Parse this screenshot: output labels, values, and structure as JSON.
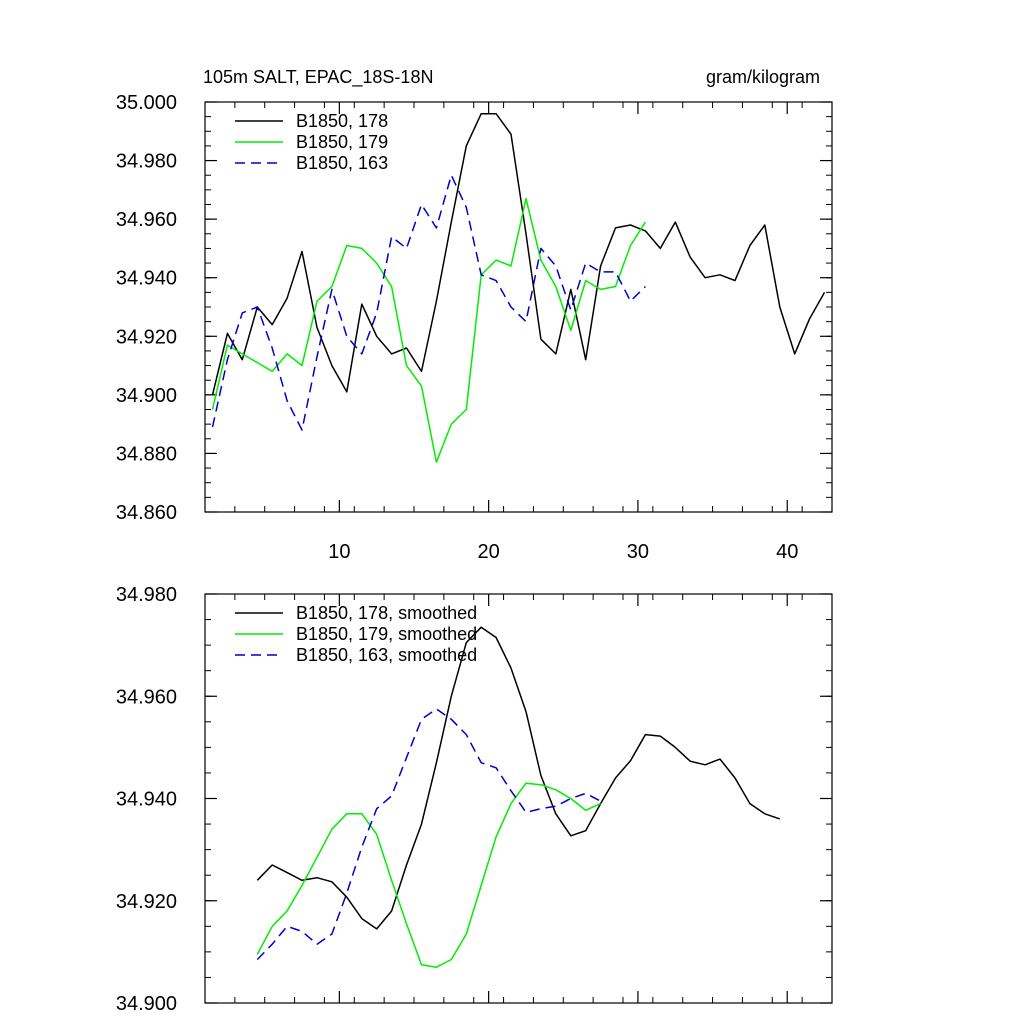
{
  "chart_data": [
    {
      "type": "line",
      "title_left": "105m SALT, EPAC_18S-18N",
      "title_right": "gram/kilogram",
      "xlim": [
        1,
        43
      ],
      "ylim": [
        34.86,
        35.0
      ],
      "xticks": [
        10,
        20,
        30,
        40
      ],
      "xtick_labels": [
        "10",
        "20",
        "30",
        "40"
      ],
      "yticks": [
        34.86,
        34.88,
        34.9,
        34.92,
        34.94,
        34.96,
        34.98,
        35.0
      ],
      "ytick_labels": [
        "34.860",
        "34.880",
        "34.900",
        "34.920",
        "34.940",
        "34.960",
        "34.980",
        "35.000"
      ],
      "legend_position": "top-left",
      "series": [
        {
          "name": "B1850, 178",
          "color": "#000000",
          "dash": "solid",
          "x": [
            1.5,
            2.5,
            3.5,
            4.5,
            5.5,
            6.5,
            7.5,
            8.5,
            9.5,
            10.5,
            11.5,
            12.5,
            13.5,
            14.5,
            15.5,
            16.5,
            17.5,
            18.5,
            19.5,
            20.5,
            21.5,
            22.5,
            23.5,
            24.5,
            25.5,
            26.5,
            27.5,
            28.5,
            29.5,
            30.5,
            31.5,
            32.5,
            33.5,
            34.5,
            35.5,
            36.5,
            37.5,
            38.5,
            39.5,
            40.5,
            41.5,
            42.5
          ],
          "y": [
            34.9,
            34.921,
            34.912,
            34.93,
            34.924,
            34.933,
            34.949,
            34.923,
            34.91,
            34.901,
            34.931,
            34.92,
            34.914,
            34.916,
            34.908,
            34.932,
            34.959,
            34.985,
            34.996,
            34.996,
            34.989,
            34.955,
            34.919,
            34.914,
            34.936,
            34.912,
            34.944,
            34.957,
            34.958,
            34.956,
            34.95,
            34.959,
            34.947,
            34.94,
            34.941,
            34.939,
            34.951,
            34.958,
            34.93,
            34.914,
            34.926,
            34.935
          ]
        },
        {
          "name": "B1850, 179",
          "color": "#00ee00",
          "dash": "solid",
          "x": [
            1.5,
            2.5,
            3.5,
            4.5,
            5.5,
            6.5,
            7.5,
            8.5,
            9.5,
            10.5,
            11.5,
            12.5,
            13.5,
            14.5,
            15.5,
            16.5,
            17.5,
            18.5,
            19.5,
            20.5,
            21.5,
            22.5,
            23.5,
            24.5,
            25.5,
            26.5,
            27.5,
            28.5,
            29.5,
            30.5
          ],
          "y": [
            34.895,
            34.917,
            34.914,
            34.911,
            34.908,
            34.914,
            34.91,
            34.932,
            34.937,
            34.951,
            34.95,
            34.945,
            34.937,
            34.91,
            34.903,
            34.877,
            34.89,
            34.895,
            34.941,
            34.946,
            34.944,
            34.967,
            34.946,
            34.937,
            34.922,
            34.939,
            34.936,
            34.937,
            34.951,
            34.959
          ]
        },
        {
          "name": "B1850, 163",
          "color": "#0000cc",
          "dash": "dashed",
          "x": [
            1.5,
            2.5,
            3.5,
            4.5,
            5.5,
            6.5,
            7.5,
            8.5,
            9.5,
            10.5,
            11.5,
            12.5,
            13.5,
            14.5,
            15.5,
            16.5,
            17.5,
            18.5,
            19.5,
            20.5,
            21.5,
            22.5,
            23.5,
            24.5,
            25.5,
            26.5,
            27.5,
            28.5,
            29.5,
            30.5
          ],
          "y": [
            34.889,
            34.912,
            34.928,
            34.93,
            34.916,
            34.898,
            34.888,
            34.913,
            34.936,
            34.92,
            34.914,
            34.928,
            34.954,
            34.95,
            34.965,
            34.957,
            34.975,
            34.964,
            34.941,
            34.939,
            34.93,
            34.925,
            34.95,
            34.944,
            34.929,
            34.945,
            34.942,
            34.942,
            34.932,
            34.937
          ]
        }
      ]
    },
    {
      "type": "line",
      "xlim": [
        1,
        43
      ],
      "ylim": [
        34.9,
        34.98
      ],
      "xticks": [
        10,
        20,
        30,
        40
      ],
      "yticks": [
        34.9,
        34.92,
        34.94,
        34.96,
        34.98
      ],
      "ytick_labels": [
        "34.900",
        "34.920",
        "34.940",
        "34.960",
        "34.980"
      ],
      "legend_position": "top-left",
      "series": [
        {
          "name": "B1850, 178, smoothed",
          "color": "#000000",
          "dash": "solid",
          "x": [
            4.5,
            5.5,
            6.5,
            7.5,
            8.5,
            9.5,
            10.5,
            11.5,
            12.5,
            13.5,
            14.5,
            15.5,
            16.5,
            17.5,
            18.5,
            19.5,
            20.5,
            21.5,
            22.5,
            23.5,
            24.5,
            25.5,
            26.5,
            27.5,
            28.5,
            29.5,
            30.5,
            31.5,
            32.5,
            33.5,
            34.5,
            35.5,
            36.5,
            37.5,
            38.5,
            39.5
          ],
          "y": [
            34.924,
            34.927,
            34.9255,
            34.924,
            34.9245,
            34.9237,
            34.9207,
            34.9165,
            34.9145,
            34.918,
            34.927,
            34.935,
            34.947,
            34.96,
            34.9705,
            34.9735,
            34.9715,
            34.9655,
            34.957,
            34.9445,
            34.937,
            34.9327,
            34.9337,
            34.939,
            34.944,
            34.9474,
            34.9525,
            34.9522,
            34.95,
            34.9473,
            34.9466,
            34.9477,
            34.944,
            34.939,
            34.937,
            34.936
          ]
        },
        {
          "name": "B1850, 179, smoothed",
          "color": "#00ee00",
          "dash": "solid",
          "x": [
            4.5,
            5.5,
            6.5,
            7.5,
            8.5,
            9.5,
            10.5,
            11.5,
            12.5,
            13.5,
            14.5,
            15.5,
            16.5,
            17.5,
            18.5,
            19.5,
            20.5,
            21.5,
            22.5,
            23.5,
            24.5,
            25.5,
            26.5,
            27.5
          ],
          "y": [
            34.9095,
            34.915,
            34.918,
            34.923,
            34.9285,
            34.934,
            34.937,
            34.937,
            34.933,
            34.924,
            34.9155,
            34.9075,
            34.907,
            34.9085,
            34.9135,
            34.923,
            34.9325,
            34.939,
            34.943,
            34.9427,
            34.9417,
            34.94,
            34.9377,
            34.939
          ]
        },
        {
          "name": "B1850, 163, smoothed",
          "color": "#0000cc",
          "dash": "dashed",
          "x": [
            4.5,
            5.5,
            6.5,
            7.5,
            8.5,
            9.5,
            10.5,
            11.5,
            12.5,
            13.5,
            14.5,
            15.5,
            16.5,
            17.5,
            18.5,
            19.5,
            20.5,
            21.5,
            22.5,
            23.5,
            24.5,
            25.5,
            26.5,
            27.5
          ],
          "y": [
            34.9085,
            34.9115,
            34.915,
            34.914,
            34.9115,
            34.9135,
            34.9215,
            34.9305,
            34.938,
            34.9405,
            34.948,
            34.9555,
            34.9575,
            34.9555,
            34.9525,
            34.947,
            34.946,
            34.9415,
            34.9373,
            34.938,
            34.9385,
            34.94,
            34.941,
            34.9395
          ]
        }
      ]
    }
  ]
}
